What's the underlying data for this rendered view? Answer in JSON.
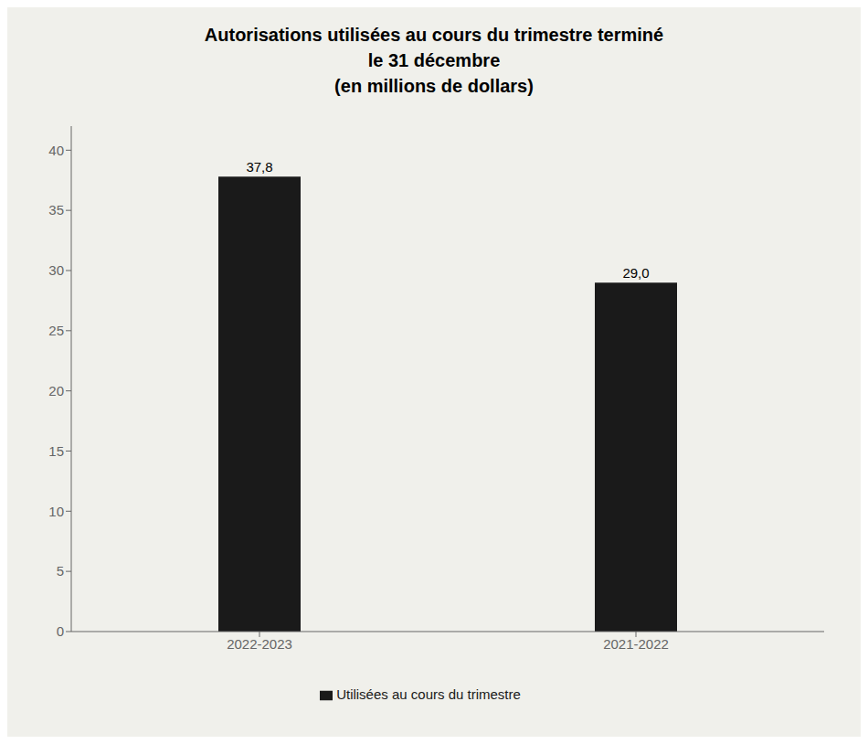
{
  "chart_data": {
    "type": "bar",
    "title": "Autorisations utilisées au cours du trimestre terminé\nle 31 décembre\n(en millions de dollars)",
    "categories": [
      "2022-2023",
      "2021-2022"
    ],
    "series": [
      {
        "name": "Utilisées au cours du trimestre",
        "color": "#1a1a1a",
        "values": [
          37.8,
          29.0
        ],
        "value_labels": [
          "37,8",
          "29,0"
        ]
      }
    ],
    "ylim": [
      0,
      42
    ],
    "yticks": [
      0,
      5,
      10,
      15,
      20,
      25,
      30,
      35,
      40
    ],
    "grid": false,
    "legend": "bottom",
    "data_labels": true
  }
}
